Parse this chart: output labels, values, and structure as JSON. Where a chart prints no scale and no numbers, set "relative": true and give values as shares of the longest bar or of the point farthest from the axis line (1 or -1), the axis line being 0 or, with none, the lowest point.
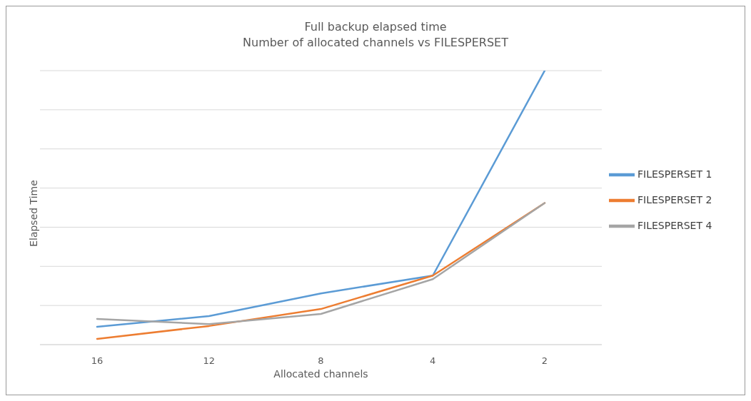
{
  "chart_data": {
    "type": "line",
    "title": "Full backup elapsed time",
    "subtitle": "Number of allocated channels vs FILESPERSET",
    "xlabel": "Allocated channels",
    "ylabel": "Elapsed Time",
    "categories": [
      "16",
      "12",
      "8",
      "4",
      "2"
    ],
    "relative": true,
    "grid": "y",
    "legend": "right",
    "marker": "none",
    "line_style": "solid",
    "series": [
      {
        "name": "FILESPERSET 1",
        "color": "#5b9bd5",
        "values": [
          0.065,
          0.104,
          0.187,
          0.252,
          1
        ]
      },
      {
        "name": "FILESPERSET 2",
        "color": "#ed7d31",
        "values": [
          0.021,
          0.068,
          0.13,
          0.252,
          0.517
        ]
      },
      {
        "name": "FILESPERSET 4",
        "color": "#a5a5a5",
        "values": [
          0.094,
          0.075,
          0.112,
          0.239,
          0.517
        ]
      }
    ]
  }
}
